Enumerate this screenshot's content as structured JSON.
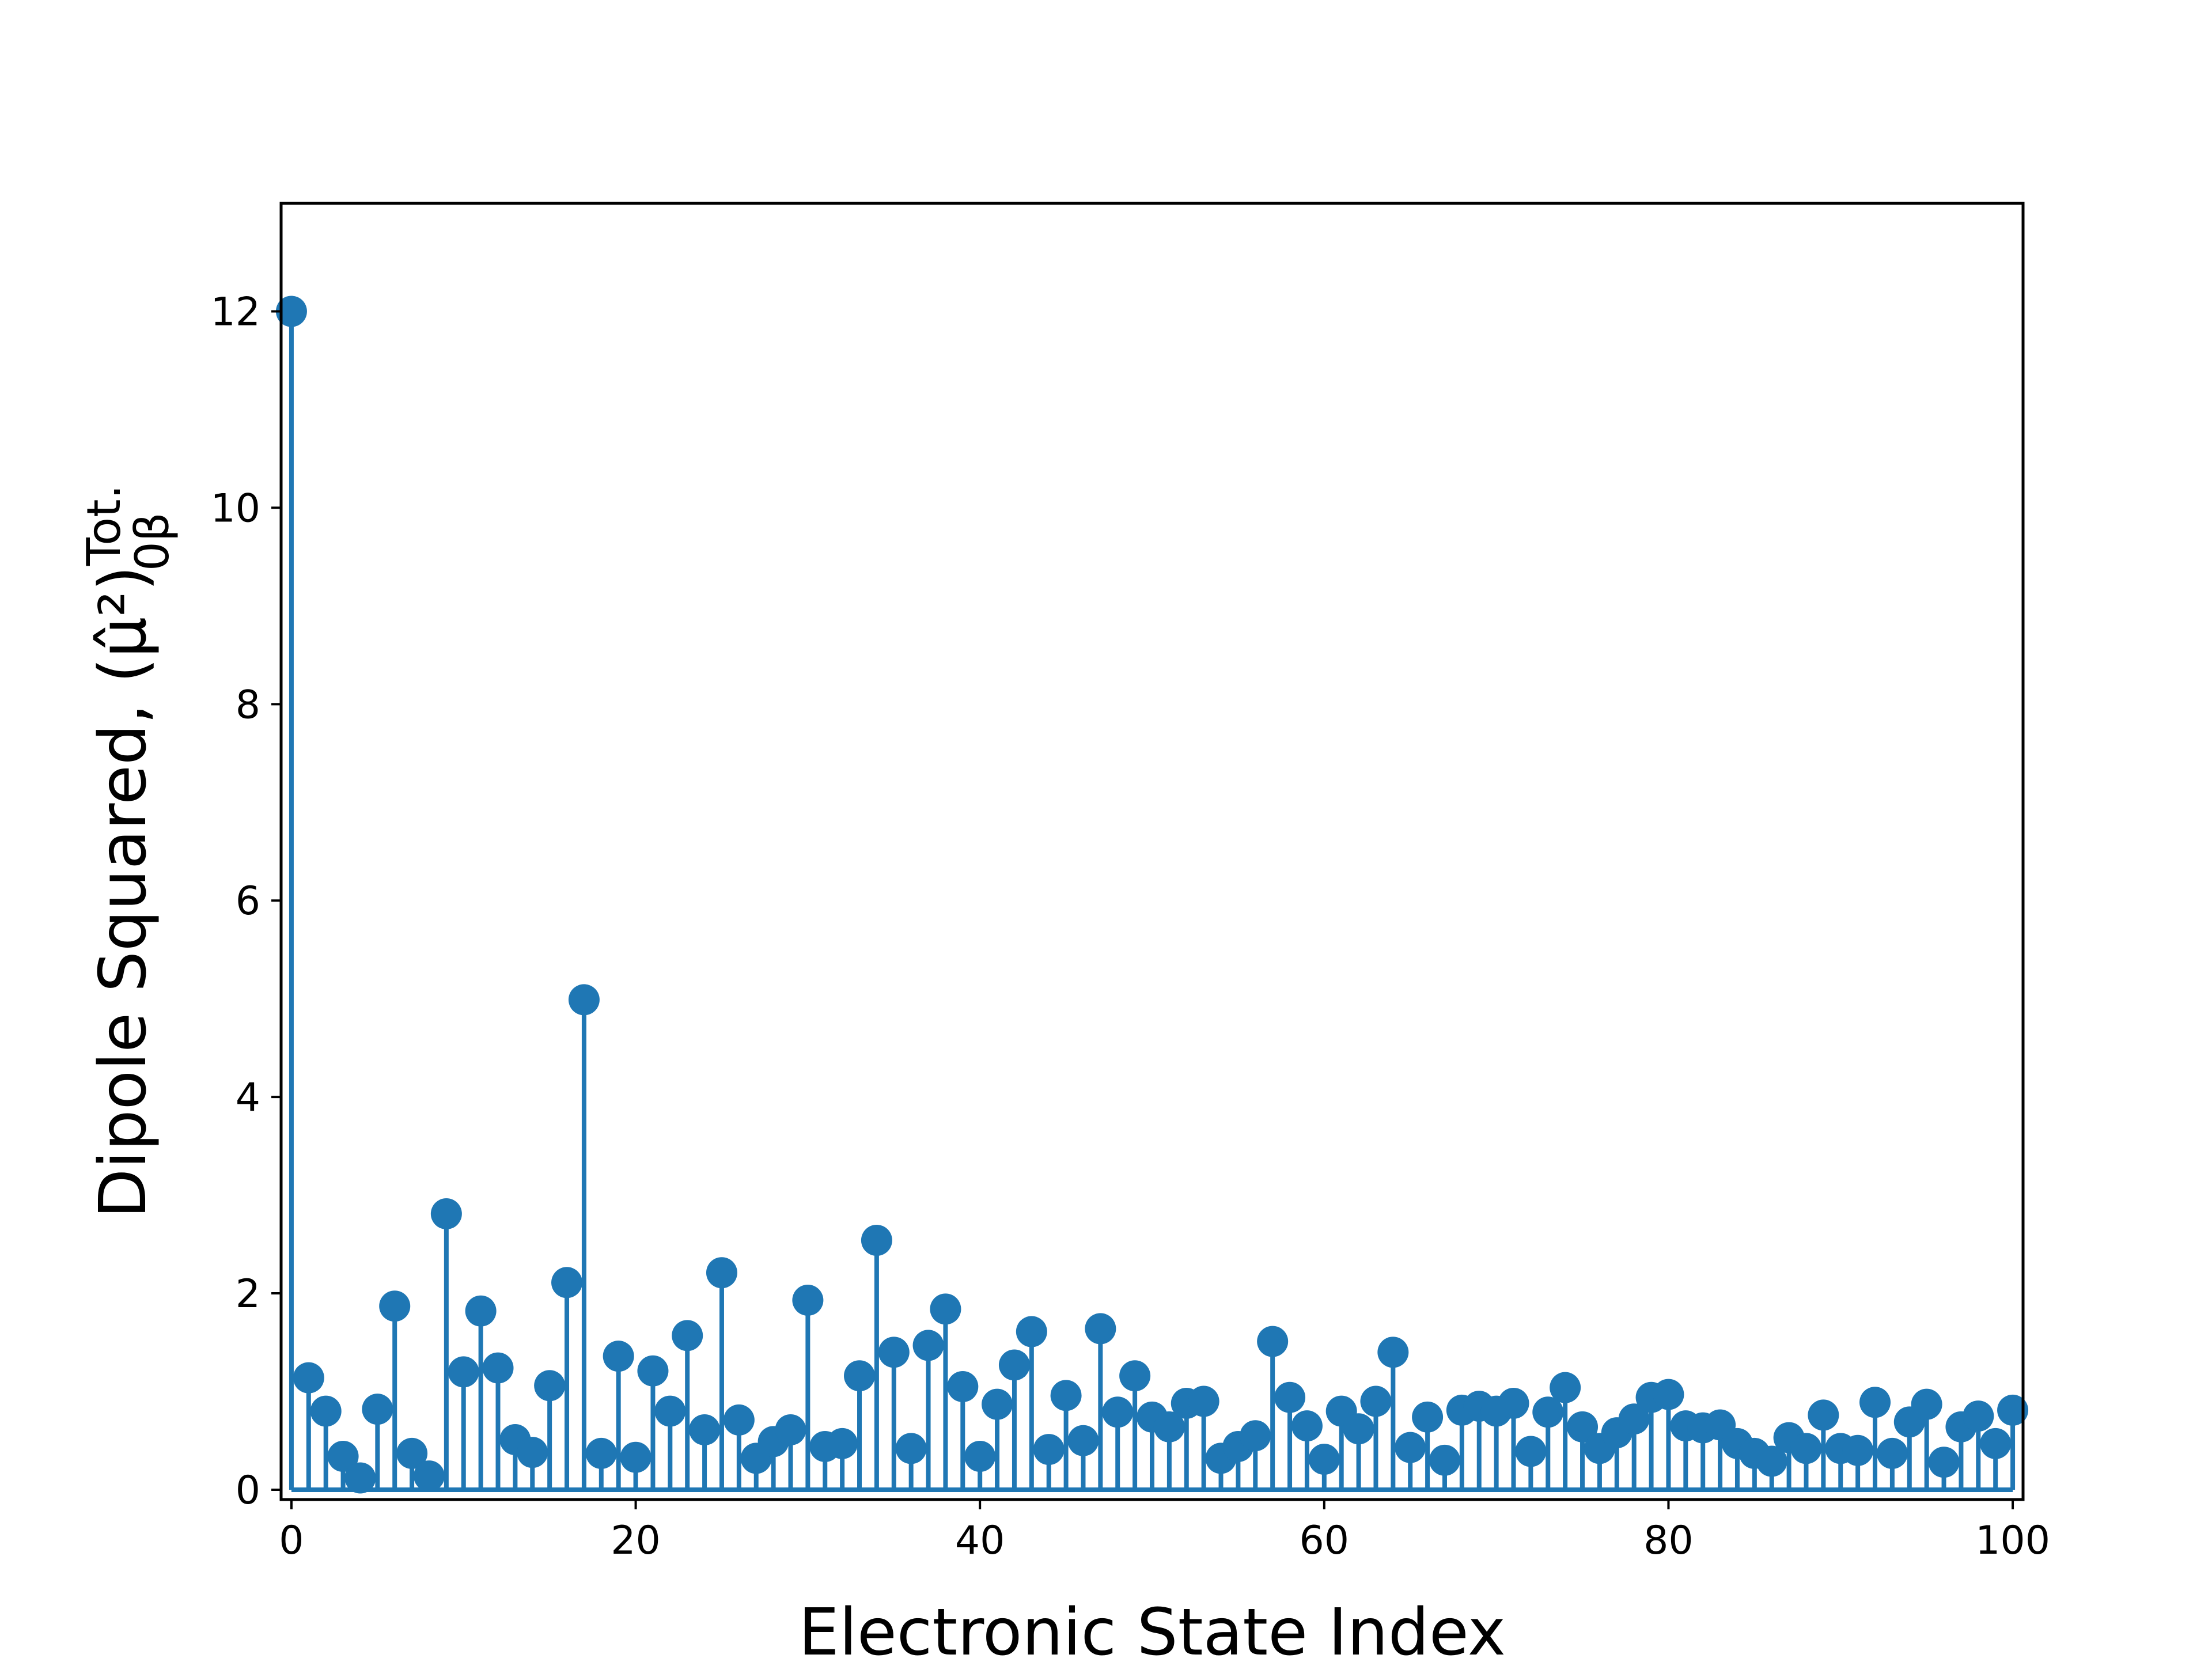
{
  "chart_data": {
    "type": "stem",
    "xlabel": "Electronic State Index",
    "ylabel": "Dipole Squared, (μ̂²)",
    "ylabel_super": "Tot.",
    "ylabel_sub": "0β",
    "xlim": [
      -0.6,
      100.6
    ],
    "ylim": [
      -0.1,
      13.1
    ],
    "xticks": [
      0,
      20,
      40,
      60,
      80,
      100
    ],
    "yticks": [
      0,
      2,
      4,
      6,
      8,
      10,
      12
    ],
    "color": "#1f77b4",
    "grid": false,
    "x": [
      0,
      1,
      2,
      3,
      4,
      5,
      6,
      7,
      8,
      9,
      10,
      11,
      12,
      13,
      14,
      15,
      16,
      17,
      18,
      19,
      20,
      21,
      22,
      23,
      24,
      25,
      26,
      27,
      28,
      29,
      30,
      31,
      32,
      33,
      34,
      35,
      36,
      37,
      38,
      39,
      40,
      41,
      42,
      43,
      44,
      45,
      46,
      47,
      48,
      49,
      50,
      51,
      52,
      53,
      54,
      55,
      56,
      57,
      58,
      59,
      60,
      61,
      62,
      63,
      64,
      65,
      66,
      67,
      68,
      69,
      70,
      71,
      72,
      73,
      74,
      75,
      76,
      77,
      78,
      79,
      80,
      81,
      82,
      83,
      84,
      85,
      86,
      87,
      88,
      89,
      90,
      91,
      92,
      93,
      94,
      95,
      96,
      97,
      98,
      99,
      100
    ],
    "values": [
      12.0,
      1.14,
      0.8,
      0.34,
      0.12,
      0.82,
      1.87,
      0.37,
      0.14,
      2.81,
      1.2,
      1.82,
      1.24,
      0.51,
      0.38,
      1.06,
      2.11,
      4.99,
      0.37,
      1.36,
      0.33,
      1.21,
      0.8,
      1.57,
      0.61,
      2.21,
      0.71,
      0.32,
      0.49,
      0.61,
      1.93,
      0.44,
      0.47,
      1.16,
      2.54,
      1.4,
      0.42,
      1.47,
      1.84,
      1.05,
      0.34,
      0.87,
      1.27,
      1.61,
      0.41,
      0.96,
      0.5,
      1.64,
      0.79,
      1.16,
      0.74,
      0.64,
      0.88,
      0.9,
      0.32,
      0.44,
      0.55,
      1.51,
      0.94,
      0.65,
      0.31,
      0.8,
      0.62,
      0.9,
      1.4,
      0.43,
      0.74,
      0.3,
      0.81,
      0.85,
      0.8,
      0.88,
      0.39,
      0.79,
      1.04,
      0.64,
      0.42,
      0.58,
      0.72,
      0.94,
      0.97,
      0.65,
      0.63,
      0.66,
      0.47,
      0.37,
      0.29,
      0.53,
      0.42,
      0.76,
      0.42,
      0.4,
      0.89,
      0.37,
      0.69,
      0.87,
      0.28,
      0.64,
      0.75,
      0.47,
      0.81
    ]
  }
}
